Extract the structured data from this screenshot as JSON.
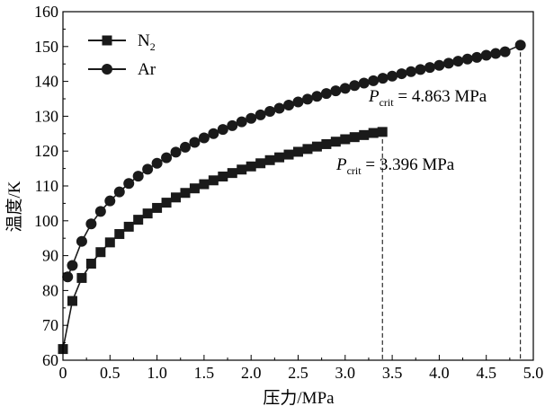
{
  "chart_data": {
    "type": "line",
    "xlabel": "压力/MPa",
    "ylabel": "温度/K",
    "xlim": [
      0,
      5.0
    ],
    "ylim": [
      60,
      160
    ],
    "xticks": [
      "0",
      "0.5",
      "1.0",
      "1.5",
      "2.0",
      "2.5",
      "3.0",
      "3.5",
      "4.0",
      "4.5",
      "5.0"
    ],
    "yticks": [
      "60",
      "70",
      "80",
      "90",
      "100",
      "110",
      "120",
      "130",
      "140",
      "150",
      "160"
    ],
    "grid": false,
    "legend_position": "top-left",
    "series": [
      {
        "name_main": "N",
        "name_sub": "2",
        "marker": "square",
        "color": "#1a1a1a",
        "points": [
          [
            0.0,
            63.2
          ],
          [
            0.1,
            77.0
          ],
          [
            0.2,
            83.6
          ],
          [
            0.3,
            87.7
          ],
          [
            0.4,
            91.0
          ],
          [
            0.5,
            93.8
          ],
          [
            0.6,
            96.2
          ],
          [
            0.7,
            98.3
          ],
          [
            0.8,
            100.3
          ],
          [
            0.9,
            102.1
          ],
          [
            1.0,
            103.7
          ],
          [
            1.1,
            105.2
          ],
          [
            1.2,
            106.7
          ],
          [
            1.3,
            108.0
          ],
          [
            1.4,
            109.3
          ],
          [
            1.5,
            110.5
          ],
          [
            1.6,
            111.6
          ],
          [
            1.7,
            112.7
          ],
          [
            1.8,
            113.7
          ],
          [
            1.9,
            114.7
          ],
          [
            2.0,
            115.6
          ],
          [
            2.1,
            116.5
          ],
          [
            2.2,
            117.4
          ],
          [
            2.3,
            118.2
          ],
          [
            2.4,
            119.0
          ],
          [
            2.5,
            119.8
          ],
          [
            2.6,
            120.6
          ],
          [
            2.7,
            121.3
          ],
          [
            2.8,
            122.0
          ],
          [
            2.9,
            122.7
          ],
          [
            3.0,
            123.4
          ],
          [
            3.1,
            124.0
          ],
          [
            3.2,
            124.6
          ],
          [
            3.3,
            125.2
          ],
          [
            3.396,
            125.5
          ]
        ]
      },
      {
        "name_main": "Ar",
        "name_sub": "",
        "marker": "circle",
        "color": "#1a1a1a",
        "points": [
          [
            0.05,
            83.9
          ],
          [
            0.1,
            87.2
          ],
          [
            0.2,
            94.1
          ],
          [
            0.3,
            99.1
          ],
          [
            0.4,
            102.7
          ],
          [
            0.5,
            105.7
          ],
          [
            0.6,
            108.3
          ],
          [
            0.7,
            110.7
          ],
          [
            0.8,
            112.8
          ],
          [
            0.9,
            114.8
          ],
          [
            1.0,
            116.5
          ],
          [
            1.1,
            118.1
          ],
          [
            1.2,
            119.7
          ],
          [
            1.3,
            121.1
          ],
          [
            1.4,
            122.5
          ],
          [
            1.5,
            123.8
          ],
          [
            1.6,
            125.0
          ],
          [
            1.7,
            126.2
          ],
          [
            1.8,
            127.3
          ],
          [
            1.9,
            128.4
          ],
          [
            2.0,
            129.4
          ],
          [
            2.1,
            130.4
          ],
          [
            2.2,
            131.4
          ],
          [
            2.3,
            132.3
          ],
          [
            2.4,
            133.2
          ],
          [
            2.5,
            134.1
          ],
          [
            2.6,
            134.9
          ],
          [
            2.7,
            135.7
          ],
          [
            2.8,
            136.5
          ],
          [
            2.9,
            137.3
          ],
          [
            3.0,
            138.0
          ],
          [
            3.1,
            138.8
          ],
          [
            3.2,
            139.5
          ],
          [
            3.3,
            140.2
          ],
          [
            3.4,
            140.9
          ],
          [
            3.5,
            141.5
          ],
          [
            3.6,
            142.2
          ],
          [
            3.7,
            142.8
          ],
          [
            3.8,
            143.4
          ],
          [
            3.9,
            144.0
          ],
          [
            4.0,
            144.6
          ],
          [
            4.1,
            145.2
          ],
          [
            4.2,
            145.8
          ],
          [
            4.3,
            146.4
          ],
          [
            4.4,
            146.9
          ],
          [
            4.5,
            147.5
          ],
          [
            4.6,
            148.0
          ],
          [
            4.7,
            148.5
          ],
          [
            4.863,
            150.4
          ]
        ]
      }
    ],
    "annotations": [
      {
        "p": "P",
        "sub": "crit",
        "rest": " = 3.396 MPa",
        "x": 3.396,
        "y": 125.5
      },
      {
        "p": "P",
        "sub": "crit",
        "rest": " = 4.863 MPa",
        "x": 4.863,
        "y": 150.4
      }
    ]
  }
}
